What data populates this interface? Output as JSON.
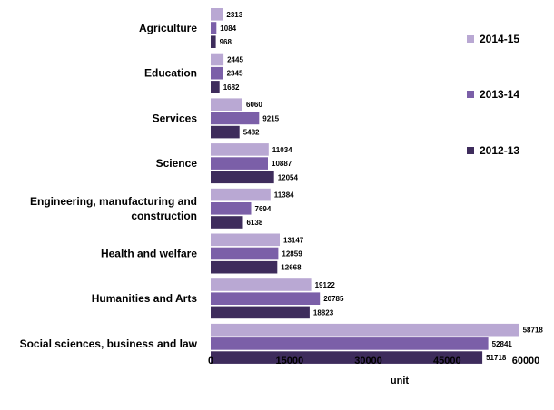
{
  "chart_data": {
    "type": "bar",
    "orientation": "horizontal",
    "categories": [
      "Agriculture",
      "Education",
      "Services",
      "Science",
      "Engineering, manufacturing and construction",
      "Health and welfare",
      "Humanities and Arts",
      "Social sciences, business and law"
    ],
    "category_label_lines": [
      [
        "Agriculture"
      ],
      [
        "Education"
      ],
      [
        "Services"
      ],
      [
        "Science"
      ],
      [
        "Engineering, manufacturing and",
        "construction"
      ],
      [
        "Health and welfare"
      ],
      [
        "Humanities and Arts"
      ],
      [
        "Social sciences, business and law"
      ]
    ],
    "series": [
      {
        "name": "2014-15",
        "color": "#b9a8d3",
        "values": [
          2313,
          2445,
          6060,
          11034,
          11384,
          13147,
          19122,
          58718
        ]
      },
      {
        "name": "2013-14",
        "color": "#7b5fa8",
        "values": [
          1084,
          2345,
          9215,
          10887,
          7694,
          12859,
          20785,
          52841
        ]
      },
      {
        "name": "2012-13",
        "color": "#3e2c5c",
        "values": [
          968,
          1682,
          5482,
          12054,
          6138,
          12668,
          18823,
          51718
        ]
      }
    ],
    "xlabel": "unit",
    "ylabel": "",
    "title": "",
    "xlim": [
      0,
      60000
    ],
    "xticks": [
      0,
      15000,
      30000,
      45000,
      60000
    ],
    "xtick_labels": [
      "0",
      "15000",
      "30000",
      "45000",
      "60000"
    ],
    "grid": false,
    "legend_position": "right"
  }
}
